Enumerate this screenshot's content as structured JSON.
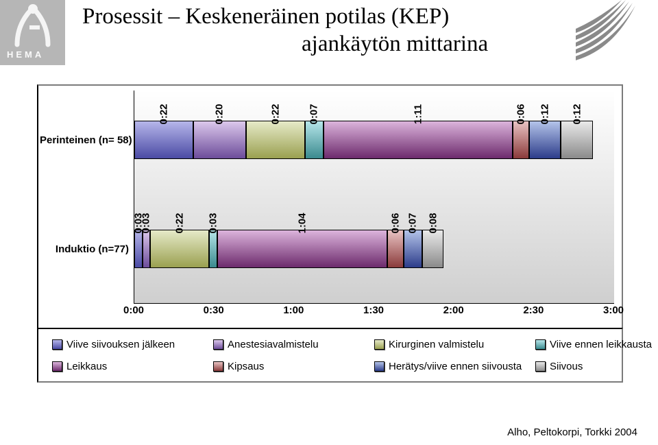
{
  "header": {
    "logo_text": "HEMA",
    "title_line1": "Prosessit – Keskeneräinen potilas (KEP)",
    "title_line2": "ajankäytön mittarina"
  },
  "chart": {
    "type": "stacked-bar-horizontal",
    "x_axis": {
      "min_minutes": 0,
      "max_minutes": 180,
      "ticks": [
        "0:00",
        "0:30",
        "1:00",
        "1:30",
        "2:00",
        "2:30",
        "3:00"
      ]
    },
    "plot": {
      "background_gradient_top": "#ffffff",
      "background_gradient_bottom": "#cfcfcf"
    },
    "colors": {
      "Viive siivouksen jälkeen": {
        "top": "#b6b6ea",
        "bottom": "#4a4aa4"
      },
      "Anestesiavalmistelu": {
        "top": "#dcc8ec",
        "bottom": "#6c4c9a"
      },
      "Kirurginen valmistelu": {
        "top": "#e6eac8",
        "bottom": "#9aa050"
      },
      "Viive ennen leikkausta": {
        "top": "#b6e6ea",
        "bottom": "#3a8a8e"
      },
      "Leikkaus": {
        "top": "#dcb4dc",
        "bottom": "#6c2a6c"
      },
      "Kipsaus": {
        "top": "#eac4c4",
        "bottom": "#8a3a3a"
      },
      "Herätys/viive ennen siivousta": {
        "top": "#b4c4ea",
        "bottom": "#2c3c8a"
      },
      "Siivous": {
        "top": "#eaeaea",
        "bottom": "#8a8a8a"
      }
    },
    "categories": [
      {
        "label": "Perinteinen (n= 58)",
        "segments": [
          {
            "series": "Viive siivouksen jälkeen",
            "minutes": 22,
            "label": "0:22"
          },
          {
            "series": "Anestesiavalmistelu",
            "minutes": 20,
            "label": "0:20"
          },
          {
            "series": "Kirurginen valmistelu",
            "minutes": 22,
            "label": "0:22"
          },
          {
            "series": "Viive ennen leikkausta",
            "minutes": 7,
            "label": "0:07"
          },
          {
            "series": "Leikkaus",
            "minutes": 71,
            "label": "1:11"
          },
          {
            "series": "Kipsaus",
            "minutes": 6,
            "label": "0:06"
          },
          {
            "series": "Herätys/viive ennen siivousta",
            "minutes": 12,
            "label": "0:12"
          },
          {
            "series": "Siivous",
            "minutes": 12,
            "label": "0:12"
          }
        ]
      },
      {
        "label": "Induktio (n=77)",
        "segments": [
          {
            "series": "Viive siivouksen jälkeen",
            "minutes": 3,
            "label": "0:03"
          },
          {
            "series": "Anestesiavalmistelu",
            "minutes": 3,
            "label": "0:03"
          },
          {
            "series": "Kirurginen valmistelu",
            "minutes": 22,
            "label": "0:22"
          },
          {
            "series": "Viive ennen leikkausta",
            "minutes": 3,
            "label": "0:03"
          },
          {
            "series": "Leikkaus",
            "minutes": 64,
            "label": "1:04"
          },
          {
            "series": "Kipsaus",
            "minutes": 6,
            "label": "0:06"
          },
          {
            "series": "Herätys/viive ennen siivousta",
            "minutes": 7,
            "label": "0:07"
          },
          {
            "series": "Siivous",
            "minutes": 8,
            "label": "0:08"
          }
        ]
      }
    ],
    "legend_order": [
      "Viive siivouksen jälkeen",
      "Anestesiavalmistelu",
      "Kirurginen valmistelu",
      "Viive ennen leikkausta",
      "Leikkaus",
      "Kipsaus",
      "Herätys/viive ennen siivousta",
      "Siivous"
    ]
  },
  "footer": {
    "citation": "Alho, Peltokorpi, Torkki 2004"
  }
}
